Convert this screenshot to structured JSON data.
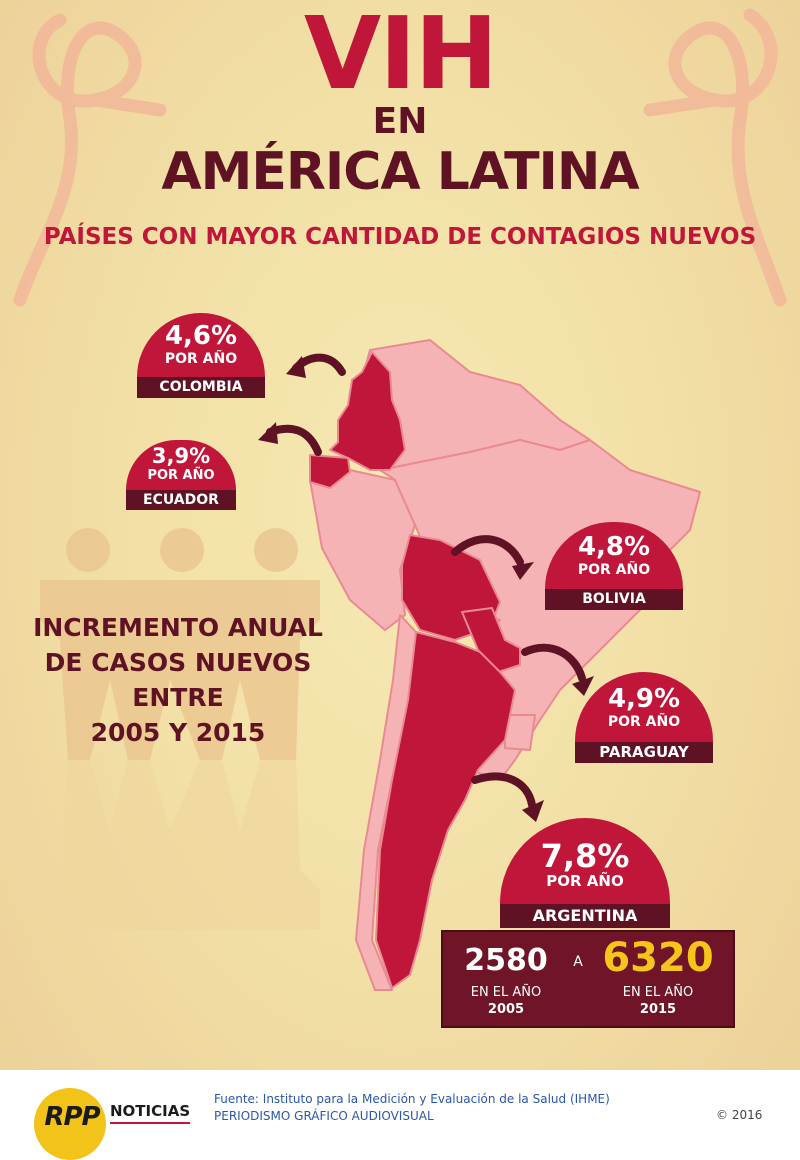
{
  "header": {
    "title": "VIH",
    "en": "EN",
    "region": "AMÉRICA LATINA",
    "subtitle": "PAÍSES CON MAYOR CANTIDAD DE CONTAGIOS NUEVOS"
  },
  "increment_text": {
    "line1": "INCREMENTO ANUAL",
    "line2": "DE CASOS NUEVOS",
    "line3": "ENTRE",
    "line4": "2005 Y 2015"
  },
  "per_year_label": "POR AÑO",
  "badges": {
    "colombia": {
      "value": "4,6%",
      "country": "COLOMBIA"
    },
    "ecuador": {
      "value": "3,9%",
      "country": "ECUADOR"
    },
    "bolivia": {
      "value": "4,8%",
      "country": "BOLIVIA"
    },
    "paraguay": {
      "value": "4,9%",
      "country": "PARAGUAY"
    },
    "argentina": {
      "value": "7,8%",
      "country": "ARGENTINA"
    }
  },
  "argentina_cases": {
    "from_value": "2580",
    "connector": "A",
    "to_value": "6320",
    "year_label": "EN EL AÑO",
    "from_year": "2005",
    "to_year": "2015"
  },
  "footer": {
    "logo": "RPP",
    "brand": "NOTICIAS",
    "source": "Fuente: Instituto para la Medición y Evaluación de la Salud (IHME)",
    "unit": "PERIODISMO GRÁFICO AUDIOVISUAL",
    "copyright": "© 2016"
  },
  "colors": {
    "accent_red": "#c0163a",
    "dark_maroon": "#5e1224",
    "highlight_yellow": "#f5c51a",
    "map_pink": "#f5b3b6",
    "background": "#f3e4ab"
  }
}
